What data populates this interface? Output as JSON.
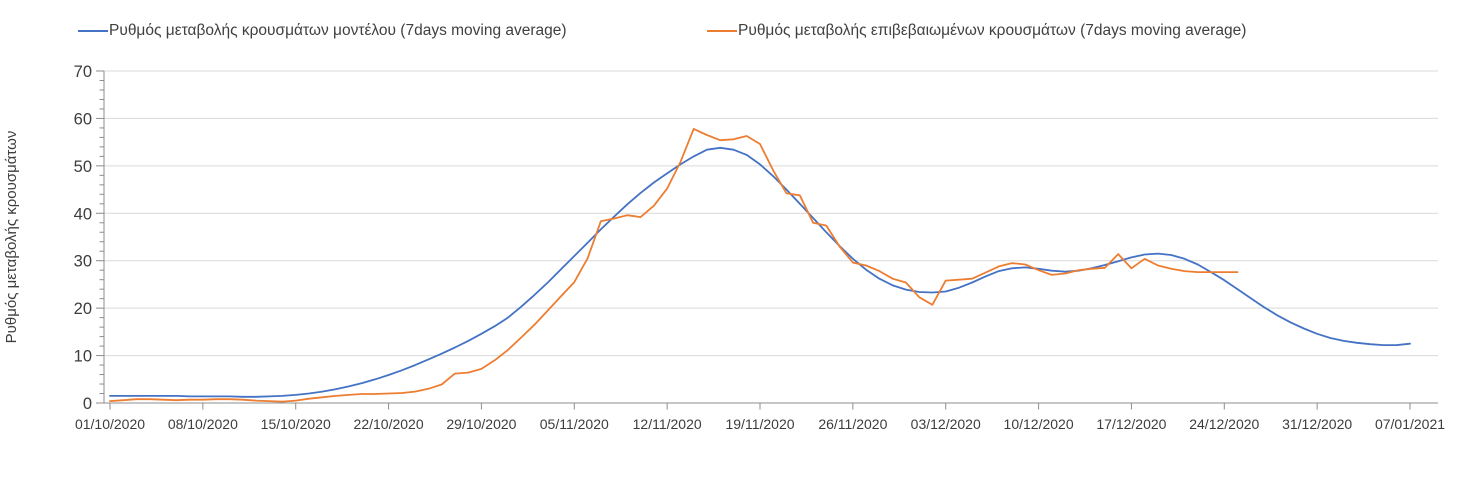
{
  "legend": {
    "items": [
      {
        "label": "Ρυθμός μεταβολής κρουσμάτων μοντέλου (7days moving average)",
        "color": "#4472C4"
      },
      {
        "label": "Ρυθμός μεταβολής επιβεβαιωμένων κρουσμάτων (7days moving average)",
        "color": "#ED7D31"
      }
    ]
  },
  "chart_data": {
    "type": "line",
    "title": "",
    "xlabel": "",
    "ylabel": "Ρυθμός μεταβολής κρουσμάτων",
    "ylim": [
      0,
      70
    ],
    "y_ticks": [
      0,
      10,
      20,
      30,
      40,
      50,
      60,
      70
    ],
    "y_minor_tick_step": 2,
    "grid": "horizontal",
    "legend_position": "top",
    "x_tick_labels": [
      "01/10/2020",
      "08/10/2020",
      "15/10/2020",
      "22/10/2020",
      "29/10/2020",
      "05/11/2020",
      "12/11/2020",
      "19/11/2020",
      "26/11/2020",
      "03/12/2020",
      "10/12/2020",
      "17/12/2020",
      "24/12/2020",
      "31/12/2020",
      "07/01/2021"
    ],
    "x_start_date": "01/10/2020",
    "x_total_days": 98,
    "series": [
      {
        "name": "Ρυθμός μεταβολής κρουσμάτων μοντέλου (7days moving average)",
        "color": "#4472C4",
        "start_day": 0,
        "interval_days": 1,
        "end_date": "07/01/2021",
        "values": [
          1.5,
          1.5,
          1.5,
          1.5,
          1.5,
          1.5,
          1.4,
          1.4,
          1.4,
          1.4,
          1.3,
          1.3,
          1.4,
          1.5,
          1.7,
          2.0,
          2.4,
          2.9,
          3.5,
          4.2,
          5.0,
          5.9,
          6.9,
          8.0,
          9.2,
          10.4,
          11.7,
          13.1,
          14.6,
          16.2,
          18.0,
          20.3,
          22.8,
          25.4,
          28.2,
          31.0,
          33.8,
          36.6,
          39.3,
          41.9,
          44.3,
          46.5,
          48.4,
          50.3,
          52.0,
          53.4,
          53.8,
          53.4,
          52.3,
          50.3,
          47.8,
          45.0,
          42.0,
          39.0,
          36.0,
          33.1,
          30.4,
          28.1,
          26.2,
          24.8,
          23.9,
          23.4,
          23.3,
          23.5,
          24.3,
          25.4,
          26.7,
          27.8,
          28.4,
          28.6,
          28.3,
          27.9,
          27.7,
          27.9,
          28.4,
          29.1,
          29.9,
          30.7,
          31.3,
          31.5,
          31.2,
          30.4,
          29.2,
          27.6,
          25.9,
          24.0,
          22.1,
          20.2,
          18.5,
          17.0,
          15.7,
          14.6,
          13.7,
          13.1,
          12.7,
          12.4,
          12.2,
          12.2,
          12.5
        ]
      },
      {
        "name": "Ρυθμός μεταβολής επιβεβαιωμένων κρουσμάτων (7days moving average)",
        "color": "#ED7D31",
        "start_day": 0,
        "interval_days": 1,
        "end_date": "25/12/2020",
        "values": [
          0.4,
          0.6,
          0.8,
          0.8,
          0.7,
          0.6,
          0.7,
          0.7,
          0.8,
          0.8,
          0.7,
          0.5,
          0.4,
          0.3,
          0.5,
          0.9,
          1.2,
          1.5,
          1.7,
          1.9,
          1.9,
          2.0,
          2.1,
          2.4,
          3.0,
          3.9,
          6.2,
          6.4,
          7.2,
          9.0,
          11.2,
          13.8,
          16.5,
          19.5,
          22.5,
          25.5,
          30.5,
          38.3,
          38.9,
          39.6,
          39.2,
          41.6,
          45.2,
          50.8,
          57.8,
          56.5,
          55.4,
          55.6,
          56.3,
          54.6,
          49.0,
          44.2,
          43.8,
          38.0,
          37.4,
          33.0,
          29.6,
          29.0,
          27.8,
          26.2,
          25.4,
          22.3,
          20.7,
          25.8,
          26.0,
          26.2,
          27.5,
          28.8,
          29.5,
          29.2,
          28.0,
          27.0,
          27.3,
          28.0,
          28.3,
          28.5,
          31.4,
          28.4,
          30.4,
          29.0,
          28.3,
          27.8,
          27.6,
          27.6,
          27.6,
          27.6
        ]
      }
    ]
  },
  "colors": {
    "grid": "#d9d9d9",
    "axis": "#8c8c8c",
    "text": "#3d3d3d"
  }
}
